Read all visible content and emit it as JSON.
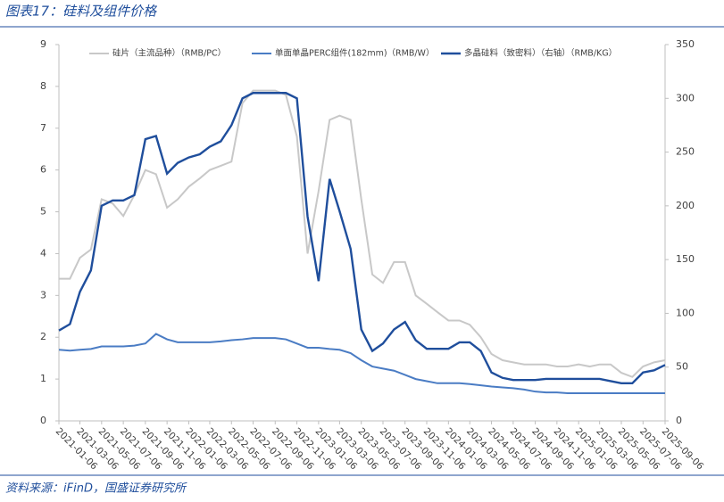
{
  "chart_data": {
    "type": "line",
    "title": "图表17：硅料及组件价格",
    "source": "资料来源：iFinD，国盛证券研究所",
    "x": [
      "2021-01-06",
      "2021-02-06",
      "2021-03-06",
      "2021-04-06",
      "2021-05-06",
      "2021-06-06",
      "2021-07-06",
      "2021-08-06",
      "2021-09-06",
      "2021-10-06",
      "2021-11-06",
      "2021-12-06",
      "2022-01-06",
      "2022-02-06",
      "2022-03-06",
      "2022-04-06",
      "2022-05-06",
      "2022-06-06",
      "2022-07-06",
      "2022-08-06",
      "2022-09-06",
      "2022-10-06",
      "2022-11-06",
      "2022-12-06",
      "2023-01-06",
      "2023-02-06",
      "2023-03-06",
      "2023-04-06",
      "2023-05-06",
      "2023-06-06",
      "2023-07-06",
      "2023-08-06",
      "2023-09-06",
      "2023-10-06",
      "2023-11-06",
      "2023-12-06",
      "2024-01-06",
      "2024-02-06",
      "2024-03-06",
      "2024-04-06",
      "2024-05-06",
      "2024-06-06",
      "2024-07-06",
      "2024-08-06",
      "2024-09-06",
      "2024-10-06",
      "2024-11-06",
      "2024-12-06",
      "2025-01-06",
      "2025-02-06",
      "2025-03-06",
      "2025-04-06",
      "2025-05-06",
      "2025-06-06",
      "2025-07-06",
      "2025-08-06",
      "2025-09-06"
    ],
    "series": [
      {
        "name": "硅片（主流品种）（RMB/PC）",
        "color": "#c8c8c8",
        "values": [
          3.4,
          3.4,
          3.9,
          4.1,
          5.3,
          5.2,
          4.9,
          5.4,
          6.0,
          5.9,
          5.1,
          5.3,
          5.6,
          5.8,
          6.0,
          6.1,
          6.2,
          7.6,
          7.9,
          7.9,
          7.9,
          7.8,
          6.8,
          4.0,
          5.5,
          7.2,
          7.3,
          7.2,
          5.3,
          3.5,
          3.3,
          3.8,
          3.8,
          3.0,
          2.8,
          2.6,
          2.4,
          2.4,
          2.3,
          2.0,
          1.6,
          1.45,
          1.4,
          1.35,
          1.35,
          1.35,
          1.3,
          1.3,
          1.35,
          1.3,
          1.35,
          1.35,
          1.15,
          1.05,
          1.3,
          1.4,
          1.45
        ]
      },
      {
        "name": "单面单晶PERC组件(182mm)（RMB/W）",
        "color": "#4a7cc4",
        "values": [
          1.7,
          1.68,
          1.7,
          1.72,
          1.78,
          1.78,
          1.78,
          1.8,
          1.85,
          2.08,
          1.95,
          1.88,
          1.88,
          1.88,
          1.88,
          1.9,
          1.93,
          1.95,
          1.98,
          1.98,
          1.98,
          1.95,
          1.85,
          1.75,
          1.75,
          1.72,
          1.7,
          1.62,
          1.45,
          1.3,
          1.25,
          1.2,
          1.1,
          1.0,
          0.95,
          0.9,
          0.9,
          0.9,
          0.88,
          0.85,
          0.82,
          0.8,
          0.78,
          0.75,
          0.7,
          0.68,
          0.68,
          0.66,
          0.66,
          0.66,
          0.66,
          0.66,
          0.66,
          0.66,
          0.66,
          0.66,
          0.66
        ]
      },
      {
        "name": "多晶硅料（致密料）（右轴）（RMB/KG）",
        "color": "#1f4e9c",
        "axis": "y2",
        "values": [
          84,
          90,
          120,
          140,
          200,
          205,
          205,
          210,
          262,
          265,
          230,
          240,
          245,
          248,
          255,
          260,
          275,
          300,
          305,
          305,
          305,
          305,
          300,
          190,
          130,
          225,
          195,
          160,
          85,
          65,
          72,
          85,
          92,
          75,
          67,
          67,
          67,
          73,
          73,
          65,
          45,
          40,
          38,
          38,
          38,
          39,
          39,
          39,
          39,
          39,
          39,
          37,
          35,
          35,
          45,
          47,
          52
        ]
      }
    ],
    "xticks": [
      "2021-01-06",
      "2021-03-06",
      "2021-05-06",
      "2021-07-06",
      "2021-09-06",
      "2021-11-06",
      "2022-01-06",
      "2022-03-06",
      "2022-05-06",
      "2022-07-06",
      "2022-09-06",
      "2022-11-06",
      "2023-01-06",
      "2023-03-06",
      "2023-05-06",
      "2023-07-06",
      "2023-09-06",
      "2023-11-06",
      "2024-01-06",
      "2024-03-06",
      "2024-05-06",
      "2024-07-06",
      "2024-09-06",
      "2024-11-06",
      "2025-01-06",
      "2025-03-06",
      "2025-05-06",
      "2025-07-06",
      "2025-09-06"
    ],
    "xlim": [
      "2021-01-06",
      "2025-09-06"
    ],
    "ylim": [
      0,
      9
    ],
    "yticks": [
      0,
      1,
      2,
      3,
      4,
      5,
      6,
      7,
      8,
      9
    ],
    "y2lim": [
      0,
      350
    ],
    "y2ticks": [
      0,
      50,
      100,
      150,
      200,
      250,
      300,
      350
    ],
    "legend": "top",
    "grid": false
  }
}
